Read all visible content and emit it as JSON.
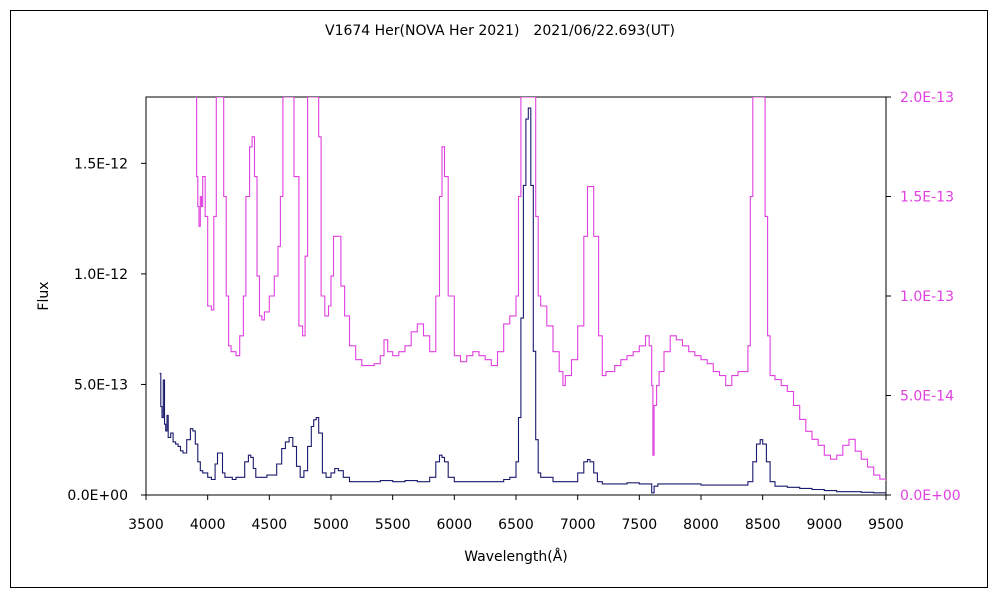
{
  "chart_data": {
    "type": "line",
    "title": "V1674 Her(NOVA Her 2021)　2021/06/22.693(UT)",
    "xlabel": "Wavelength(Å)",
    "ylabel": "Flux",
    "xlim": [
      3500,
      9500
    ],
    "ylim_left": [
      0,
      1.8e-12
    ],
    "ylim_right": [
      0,
      2e-13
    ],
    "x_ticks": [
      "3500",
      "4000",
      "4500",
      "5000",
      "5500",
      "6000",
      "6500",
      "7000",
      "7500",
      "8000",
      "8500",
      "9000",
      "9500"
    ],
    "y_ticks_left": [
      {
        "value": 0,
        "label": "0.0E+00"
      },
      {
        "value": 5e-13,
        "label": "5.0E-13"
      },
      {
        "value": 1e-12,
        "label": "1.0E-12"
      },
      {
        "value": 1.5e-12,
        "label": "1.5E-12"
      }
    ],
    "y_ticks_right": [
      {
        "value": 0,
        "label": "0.0E+00"
      },
      {
        "value": 5e-14,
        "label": "5.0E-14"
      },
      {
        "value": 1e-13,
        "label": "1.0E-13"
      },
      {
        "value": 1.5e-13,
        "label": "1.5E-13"
      },
      {
        "value": 2e-13,
        "label": "2.0E-13"
      }
    ],
    "grid": false,
    "colors": {
      "left_series": "#1a1a6e",
      "right_series": "#e040e0"
    },
    "series": [
      {
        "axis": "left",
        "x": [
          3610,
          3620,
          3630,
          3640,
          3650,
          3660,
          3670,
          3680,
          3700,
          3720,
          3740,
          3760,
          3780,
          3800,
          3830,
          3860,
          3880,
          3900,
          3920,
          3940,
          3960,
          3980,
          4000,
          4030,
          4060,
          4080,
          4100,
          4120,
          4140,
          4170,
          4200,
          4230,
          4270,
          4300,
          4330,
          4350,
          4370,
          4390,
          4420,
          4450,
          4480,
          4520,
          4560,
          4600,
          4630,
          4660,
          4690,
          4720,
          4750,
          4780,
          4810,
          4840,
          4860,
          4880,
          4900,
          4930,
          4960,
          5000,
          5030,
          5060,
          5100,
          5150,
          5200,
          5300,
          5400,
          5500,
          5600,
          5700,
          5800,
          5850,
          5880,
          5900,
          5920,
          5950,
          6000,
          6100,
          6200,
          6300,
          6400,
          6450,
          6500,
          6520,
          6540,
          6560,
          6580,
          6600,
          6620,
          6640,
          6660,
          6680,
          6700,
          6800,
          6900,
          7000,
          7050,
          7080,
          7100,
          7130,
          7160,
          7200,
          7300,
          7400,
          7500,
          7580,
          7600,
          7620,
          7650,
          7700,
          7800,
          7900,
          8000,
          8100,
          8200,
          8300,
          8380,
          8420,
          8450,
          8480,
          8500,
          8530,
          8560,
          8600,
          8700,
          8800,
          8900,
          9000,
          9100,
          9200,
          9300,
          9400,
          9500
        ],
        "y": [
          5.5e-13,
          4e-13,
          3.5e-13,
          5.2e-13,
          3.2e-13,
          2.9e-13,
          3.6e-13,
          2.6e-13,
          2.8e-13,
          2.4e-13,
          2.3e-13,
          2.2e-13,
          2e-13,
          1.9e-13,
          2.5e-13,
          3e-13,
          2.9e-13,
          2.3e-13,
          1.5e-13,
          1.1e-13,
          1e-13,
          1e-13,
          8e-14,
          7e-14,
          1.4e-13,
          1.9e-13,
          1.9e-13,
          1e-13,
          8e-14,
          8e-14,
          7e-14,
          8e-14,
          8e-14,
          1.5e-13,
          1.8e-13,
          1.7e-13,
          1.2e-13,
          8e-14,
          8e-14,
          8e-14,
          9e-14,
          9e-14,
          1.4e-13,
          2.1e-13,
          2.4e-13,
          2.6e-13,
          2.2e-13,
          1.3e-13,
          8e-14,
          1.1e-13,
          2.2e-13,
          3.1e-13,
          3.4e-13,
          3.5e-13,
          2.8e-13,
          1e-13,
          8e-14,
          1e-13,
          1.2e-13,
          1.1e-13,
          8e-14,
          6e-14,
          6e-14,
          6e-14,
          6.5e-14,
          6e-14,
          6.5e-14,
          6e-14,
          8e-14,
          1.5e-13,
          1.8e-13,
          1.7e-13,
          1.5e-13,
          8e-14,
          6e-14,
          6e-14,
          6e-14,
          6e-14,
          7e-14,
          8e-14,
          1.5e-13,
          3.5e-13,
          8e-13,
          1.4e-12,
          1.7e-12,
          1.75e-12,
          1.4e-12,
          6.5e-13,
          2.5e-13,
          1e-13,
          8e-14,
          6e-14,
          6e-14,
          1e-13,
          1.5e-13,
          1.6e-13,
          1.5e-13,
          1e-13,
          6e-14,
          5e-14,
          5e-14,
          5.5e-14,
          5e-14,
          5e-14,
          1e-14,
          4e-14,
          5e-14,
          5e-14,
          5e-14,
          5e-14,
          4.5e-14,
          4.5e-14,
          4.5e-14,
          4.5e-14,
          6e-14,
          1.5e-13,
          2.3e-13,
          2.5e-13,
          2.3e-13,
          1.5e-13,
          6e-14,
          4e-14,
          3.5e-14,
          3e-14,
          2.5e-14,
          2e-14,
          1.5e-14,
          1.5e-14,
          1.2e-14,
          1e-14,
          8e-15
        ]
      },
      {
        "axis": "right",
        "x": [
          3900,
          3910,
          3920,
          3930,
          3940,
          3950,
          3960,
          3980,
          4000,
          4030,
          4050,
          4070,
          4090,
          4110,
          4130,
          4150,
          4170,
          4190,
          4210,
          4230,
          4260,
          4290,
          4310,
          4340,
          4360,
          4380,
          4400,
          4420,
          4440,
          4460,
          4500,
          4540,
          4570,
          4590,
          4610,
          4620,
          4640,
          4660,
          4700,
          4740,
          4770,
          4790,
          4810,
          4830,
          4860,
          4880,
          4900,
          4920,
          4950,
          4980,
          5000,
          5020,
          5050,
          5080,
          5110,
          5150,
          5200,
          5250,
          5300,
          5350,
          5400,
          5430,
          5460,
          5500,
          5550,
          5600,
          5650,
          5700,
          5750,
          5800,
          5850,
          5880,
          5900,
          5920,
          5950,
          6000,
          6050,
          6100,
          6150,
          6200,
          6250,
          6300,
          6350,
          6400,
          6450,
          6500,
          6520,
          6540,
          6560,
          6600,
          6620,
          6640,
          6660,
          6680,
          6700,
          6750,
          6800,
          6850,
          6880,
          6900,
          6950,
          7000,
          7050,
          7080,
          7100,
          7130,
          7170,
          7200,
          7230,
          7260,
          7300,
          7350,
          7400,
          7450,
          7500,
          7550,
          7580,
          7600,
          7610,
          7620,
          7640,
          7660,
          7700,
          7750,
          7800,
          7850,
          7900,
          7950,
          8000,
          8050,
          8100,
          8150,
          8200,
          8250,
          8300,
          8350,
          8380,
          8400,
          8420,
          8440,
          8460,
          8480,
          8500,
          8520,
          8540,
          8560,
          8600,
          8650,
          8700,
          8750,
          8800,
          8850,
          8900,
          8950,
          9000,
          9050,
          9100,
          9150,
          9200,
          9250,
          9300,
          9350,
          9400,
          9450,
          9500
        ],
        "y": [
          2e-13,
          1.6e-13,
          1.45e-13,
          1.35e-13,
          1.5e-13,
          1.45e-13,
          1.6e-13,
          1.4e-13,
          9.5e-14,
          9.3e-14,
          1.4e-13,
          2e-13,
          2e-13,
          2e-13,
          1.5e-13,
          1e-13,
          7.5e-14,
          7.2e-14,
          7.2e-14,
          7e-14,
          8e-14,
          1e-13,
          1.5e-13,
          1.75e-13,
          1.8e-13,
          1.6e-13,
          1.1e-13,
          9e-14,
          8.8e-14,
          9.2e-14,
          1e-13,
          1.1e-13,
          1.25e-13,
          1.5e-13,
          2e-13,
          2e-13,
          2e-13,
          2e-13,
          1.6e-13,
          8.5e-14,
          8e-14,
          1.2e-13,
          2e-13,
          2e-13,
          2e-13,
          2e-13,
          1.8e-13,
          1e-13,
          9e-14,
          9.5e-14,
          1.1e-13,
          1.3e-13,
          1.3e-13,
          1.05e-13,
          9e-14,
          7.5e-14,
          6.8e-14,
          6.5e-14,
          6.5e-14,
          6.6e-14,
          7e-14,
          7.8e-14,
          7.2e-14,
          7e-14,
          7.2e-14,
          7.5e-14,
          8.2e-14,
          8.6e-14,
          8e-14,
          7.2e-14,
          1e-13,
          1.5e-13,
          1.75e-13,
          1.6e-13,
          1e-13,
          7e-14,
          6.7e-14,
          7e-14,
          7.2e-14,
          7e-14,
          6.8e-14,
          6.5e-14,
          7.2e-14,
          8.6e-14,
          9e-14,
          1e-13,
          1.5e-13,
          2e-13,
          2e-13,
          2e-13,
          2e-13,
          2e-13,
          1.4e-13,
          1e-13,
          9.5e-14,
          8.5e-14,
          7.2e-14,
          6.2e-14,
          5.5e-14,
          6e-14,
          6.8e-14,
          8.5e-14,
          1.3e-13,
          1.55e-13,
          1.55e-13,
          1.3e-13,
          8e-14,
          6e-14,
          6.2e-14,
          6.2e-14,
          6.5e-14,
          6.8e-14,
          7e-14,
          7.2e-14,
          7.5e-14,
          8e-14,
          7.5e-14,
          5.5e-14,
          2e-14,
          4.5e-14,
          5.5e-14,
          6.2e-14,
          7.2e-14,
          8e-14,
          7.8e-14,
          7.5e-14,
          7.2e-14,
          7e-14,
          6.8e-14,
          6.6e-14,
          6.2e-14,
          6e-14,
          5.5e-14,
          6e-14,
          6.2e-14,
          6.2e-14,
          7.5e-14,
          1.5e-13,
          2e-13,
          2e-13,
          2e-13,
          2e-13,
          2e-13,
          1.4e-13,
          8e-14,
          6e-14,
          5.8e-14,
          5.5e-14,
          5.2e-14,
          4.5e-14,
          3.8e-14,
          3.2e-14,
          2.8e-14,
          2.5e-14,
          2e-14,
          1.8e-14,
          2e-14,
          2.5e-14,
          2.8e-14,
          2.2e-14,
          1.8e-14,
          1.4e-14,
          1e-14,
          8e-15,
          7e-15
        ]
      }
    ]
  }
}
